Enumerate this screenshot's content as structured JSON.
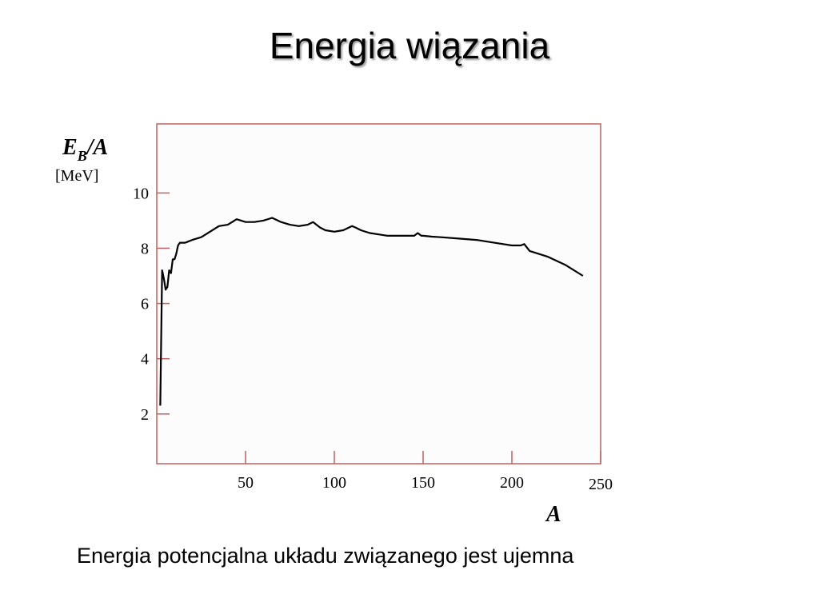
{
  "slide": {
    "title": "Energia wiązania",
    "caption": "Energia potencjalna układu związanego jest ujemna"
  },
  "chart_data": {
    "type": "line",
    "ylabel_main": "E",
    "ylabel_sub": "B",
    "ylabel_suffix": "/A",
    "yunit": "[MeV]",
    "xlabel": "A",
    "xlim": [
      0,
      250
    ],
    "ylim": [
      0.2,
      12.5
    ],
    "xticks": [
      50,
      100,
      150,
      200,
      250
    ],
    "yticks": [
      2,
      4,
      6,
      8,
      10
    ],
    "colors": {
      "frame": "#c06060",
      "line": "#000000",
      "plot_bg": "#fdfcfc"
    },
    "series": [
      {
        "x": [
          2,
          3,
          4,
          5,
          6,
          7,
          8,
          9,
          10,
          11,
          12,
          13,
          14,
          15,
          16,
          18,
          20,
          25,
          30,
          35,
          40,
          45,
          50,
          55,
          60,
          65,
          70,
          75,
          80,
          85,
          88,
          92,
          95,
          100,
          105,
          110,
          112,
          115,
          120,
          125,
          130,
          135,
          140,
          145,
          147,
          149,
          150,
          155,
          160,
          170,
          180,
          190,
          200,
          205,
          207,
          210,
          220,
          230,
          240
        ],
        "y": [
          2.3,
          7.2,
          6.9,
          6.5,
          6.6,
          7.2,
          7.1,
          7.6,
          7.6,
          7.8,
          8.1,
          8.2,
          8.2,
          8.2,
          8.2,
          8.25,
          8.3,
          8.4,
          8.6,
          8.8,
          8.85,
          9.05,
          8.95,
          8.95,
          9.0,
          9.1,
          8.95,
          8.85,
          8.8,
          8.85,
          8.95,
          8.75,
          8.65,
          8.6,
          8.65,
          8.8,
          8.75,
          8.65,
          8.55,
          8.5,
          8.45,
          8.45,
          8.45,
          8.45,
          8.55,
          8.45,
          8.45,
          8.42,
          8.4,
          8.35,
          8.3,
          8.2,
          8.1,
          8.1,
          8.15,
          7.9,
          7.7,
          7.4,
          7.0
        ]
      }
    ]
  }
}
